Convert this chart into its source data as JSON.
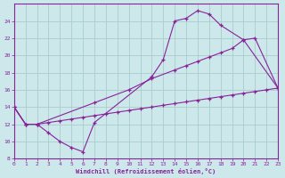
{
  "background_color": "#cce8ea",
  "grid_color": "#aacccc",
  "line_color": "#882299",
  "xlim": [
    0,
    23
  ],
  "ylim": [
    8,
    26
  ],
  "xticks": [
    0,
    1,
    2,
    3,
    4,
    5,
    6,
    7,
    8,
    9,
    10,
    11,
    12,
    13,
    14,
    15,
    16,
    17,
    18,
    19,
    20,
    21,
    22,
    23
  ],
  "yticks": [
    8,
    10,
    12,
    14,
    16,
    18,
    20,
    22,
    24
  ],
  "xlabel": "Windchill (Refroidissement éolien,°C)",
  "line1_x": [
    0,
    1,
    2,
    3,
    4,
    5,
    6,
    7,
    12,
    13,
    14,
    15,
    16,
    17,
    18,
    20,
    23
  ],
  "line1_y": [
    14,
    12,
    12,
    11,
    10,
    9.3,
    8.8,
    12.2,
    17.5,
    19.5,
    24.0,
    24.3,
    25.2,
    24.8,
    23.5,
    21.8,
    16.2
  ],
  "line2_x": [
    0,
    1,
    2,
    7,
    10,
    12,
    14,
    15,
    16,
    17,
    18,
    19,
    20,
    21,
    23
  ],
  "line2_y": [
    14,
    12,
    12,
    14.5,
    16,
    17.3,
    18.3,
    18.8,
    19.3,
    19.8,
    20.3,
    20.8,
    21.8,
    22.0,
    16.2
  ],
  "line3_x": [
    0,
    1,
    2,
    3,
    4,
    5,
    6,
    7,
    8,
    9,
    10,
    11,
    12,
    13,
    14,
    15,
    16,
    17,
    18,
    19,
    20,
    21,
    22,
    23
  ],
  "line3_y": [
    14,
    12,
    12,
    12.2,
    12.4,
    12.6,
    12.8,
    13.0,
    13.2,
    13.4,
    13.6,
    13.8,
    14.0,
    14.2,
    14.4,
    14.6,
    14.8,
    15.0,
    15.2,
    15.4,
    15.6,
    15.8,
    16.0,
    16.2
  ]
}
